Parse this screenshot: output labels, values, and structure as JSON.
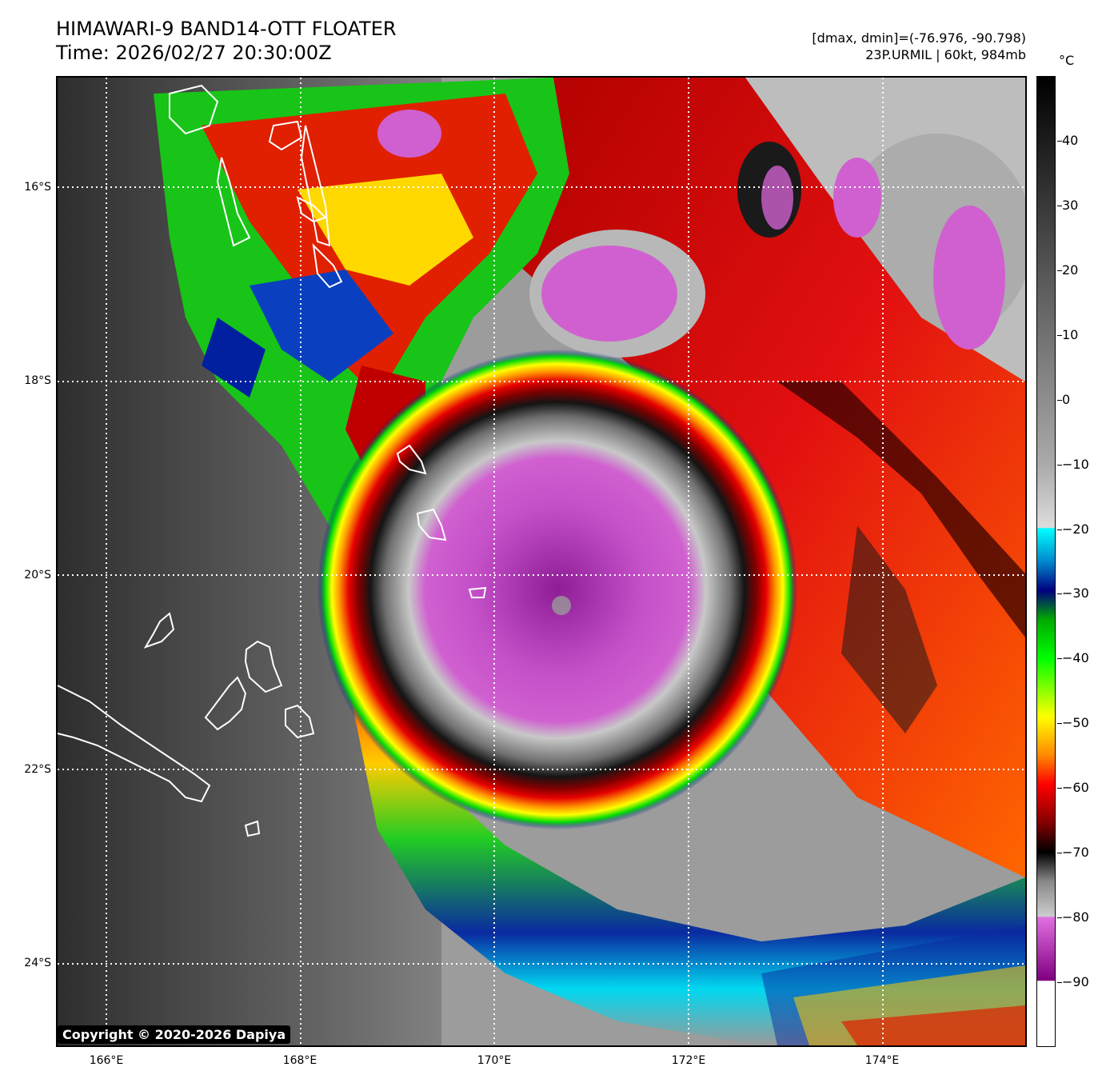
{
  "header": {
    "title_line1": "HIMAWARI-9 BAND14-OTT FLOATER",
    "title_line2": "Time: 2026/02/27 20:30:00Z",
    "range_info": "[dmax, dmin]=(-76.976, -90.798)",
    "storm_info": "23P.URMIL | 60kt, 984mb"
  },
  "map": {
    "lat_labels": [
      "16°S",
      "18°S",
      "20°S",
      "22°S",
      "24°S"
    ],
    "lon_labels": [
      "166°E",
      "168°E",
      "170°E",
      "172°E",
      "174°E"
    ],
    "copyright": "Copyright © 2020-2026 Dapiya"
  },
  "colorbar": {
    "unit": "°C",
    "tick_labels": [
      "40",
      "30",
      "20",
      "10",
      "0",
      "−10",
      "−20",
      "−30",
      "−40",
      "−50",
      "−60",
      "−70",
      "−80",
      "−90"
    ],
    "range": [
      -100,
      50
    ]
  }
}
